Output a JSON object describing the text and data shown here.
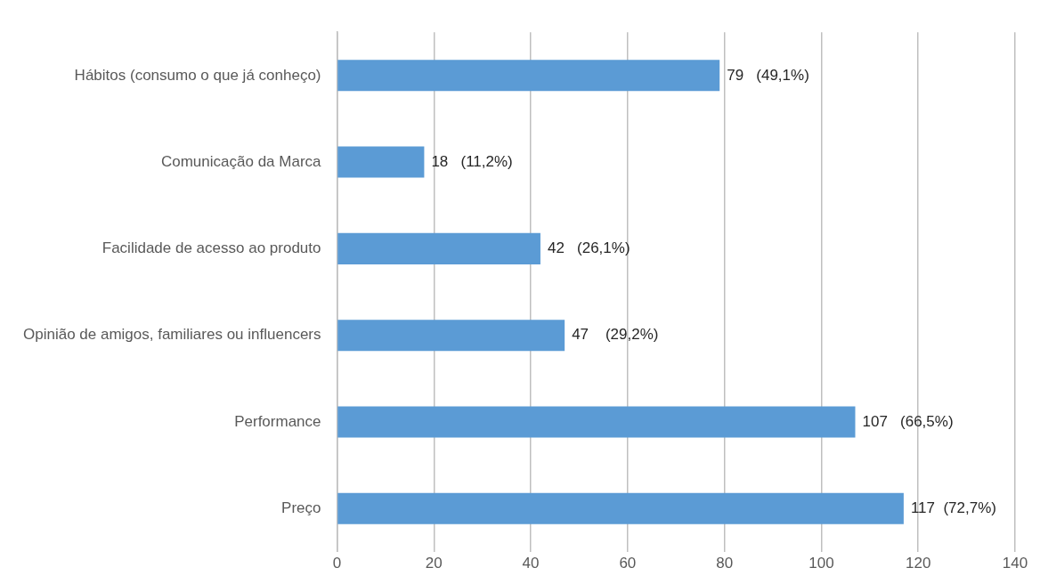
{
  "chart_data": {
    "type": "bar",
    "orientation": "horizontal",
    "categories": [
      "Hábitos (consumo o que já conheço)",
      "Comunicação da Marca",
      "Facilidade de acesso ao produto",
      "Opinião de amigos, familiares ou influencers",
      "Performance",
      "Preço"
    ],
    "values": [
      79,
      18,
      42,
      47,
      107,
      117
    ],
    "value_labels": [
      "79   (49,1%)",
      "18   (11,2%)",
      "42   (26,1%)",
      "47    (29,2%)",
      "107   (66,5%)",
      "117  (72,7%)"
    ],
    "color": "#5b9bd5",
    "xlim": [
      0,
      140
    ],
    "xticks": [
      0,
      20,
      40,
      60,
      80,
      100,
      120,
      140
    ],
    "grid": "x",
    "legend": false
  }
}
